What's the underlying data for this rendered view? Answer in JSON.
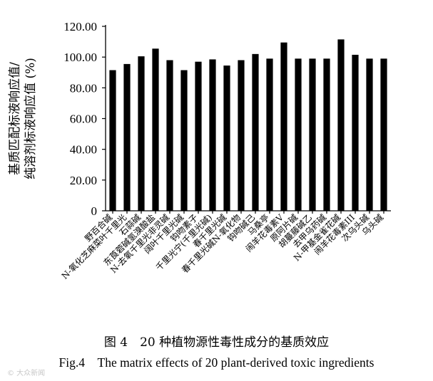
{
  "chart_data": {
    "type": "bar",
    "ylabel": [
      "基质匹配标液响应值/",
      "纯溶剂标液响应值 (%)"
    ],
    "xlabel": "",
    "ylim": [
      0,
      120
    ],
    "yticks": [
      0,
      20,
      40,
      60,
      80,
      100,
      120
    ],
    "ytick_labels": [
      "0",
      "20.00",
      "40.00",
      "60.00",
      "80.00",
      "100.00",
      "120.00"
    ],
    "grid": false,
    "bar_color": "#000000",
    "categories": [
      "野百合碱",
      "N-氧化芝麻菜叶千里光",
      "石蒜碱",
      "东莨菪碱氢溴酸盐",
      "N-去氧千里光非灵碱",
      "阔叶千里光碱",
      "钩吻素子",
      "千里光宁(千里光碱)",
      "春千里光碱",
      "春千里光碱N-氧化物",
      "钩吻碱己",
      "马桑亭",
      "闹羊花毒素V",
      "原阿片碱",
      "胡蔓藤碱乙",
      "去甲乌药碱",
      "N-甲基金雀花碱",
      "闹羊花毒素III",
      "次乌头碱",
      "乌头碱"
    ],
    "values": [
      91.5,
      95.5,
      100.5,
      105.5,
      98.0,
      91.5,
      97.0,
      98.5,
      94.5,
      98.0,
      102.0,
      99.0,
      109.5,
      99.0,
      99.0,
      99.0,
      111.5,
      101.5,
      99.0,
      99.0
    ]
  },
  "captions": {
    "cn": "图 4　20 种植物源性毒性成分的基质效应",
    "en": "Fig.4　The matrix effects of 20 plant-derived toxic ingredients"
  },
  "watermark": "© 大众新闻"
}
